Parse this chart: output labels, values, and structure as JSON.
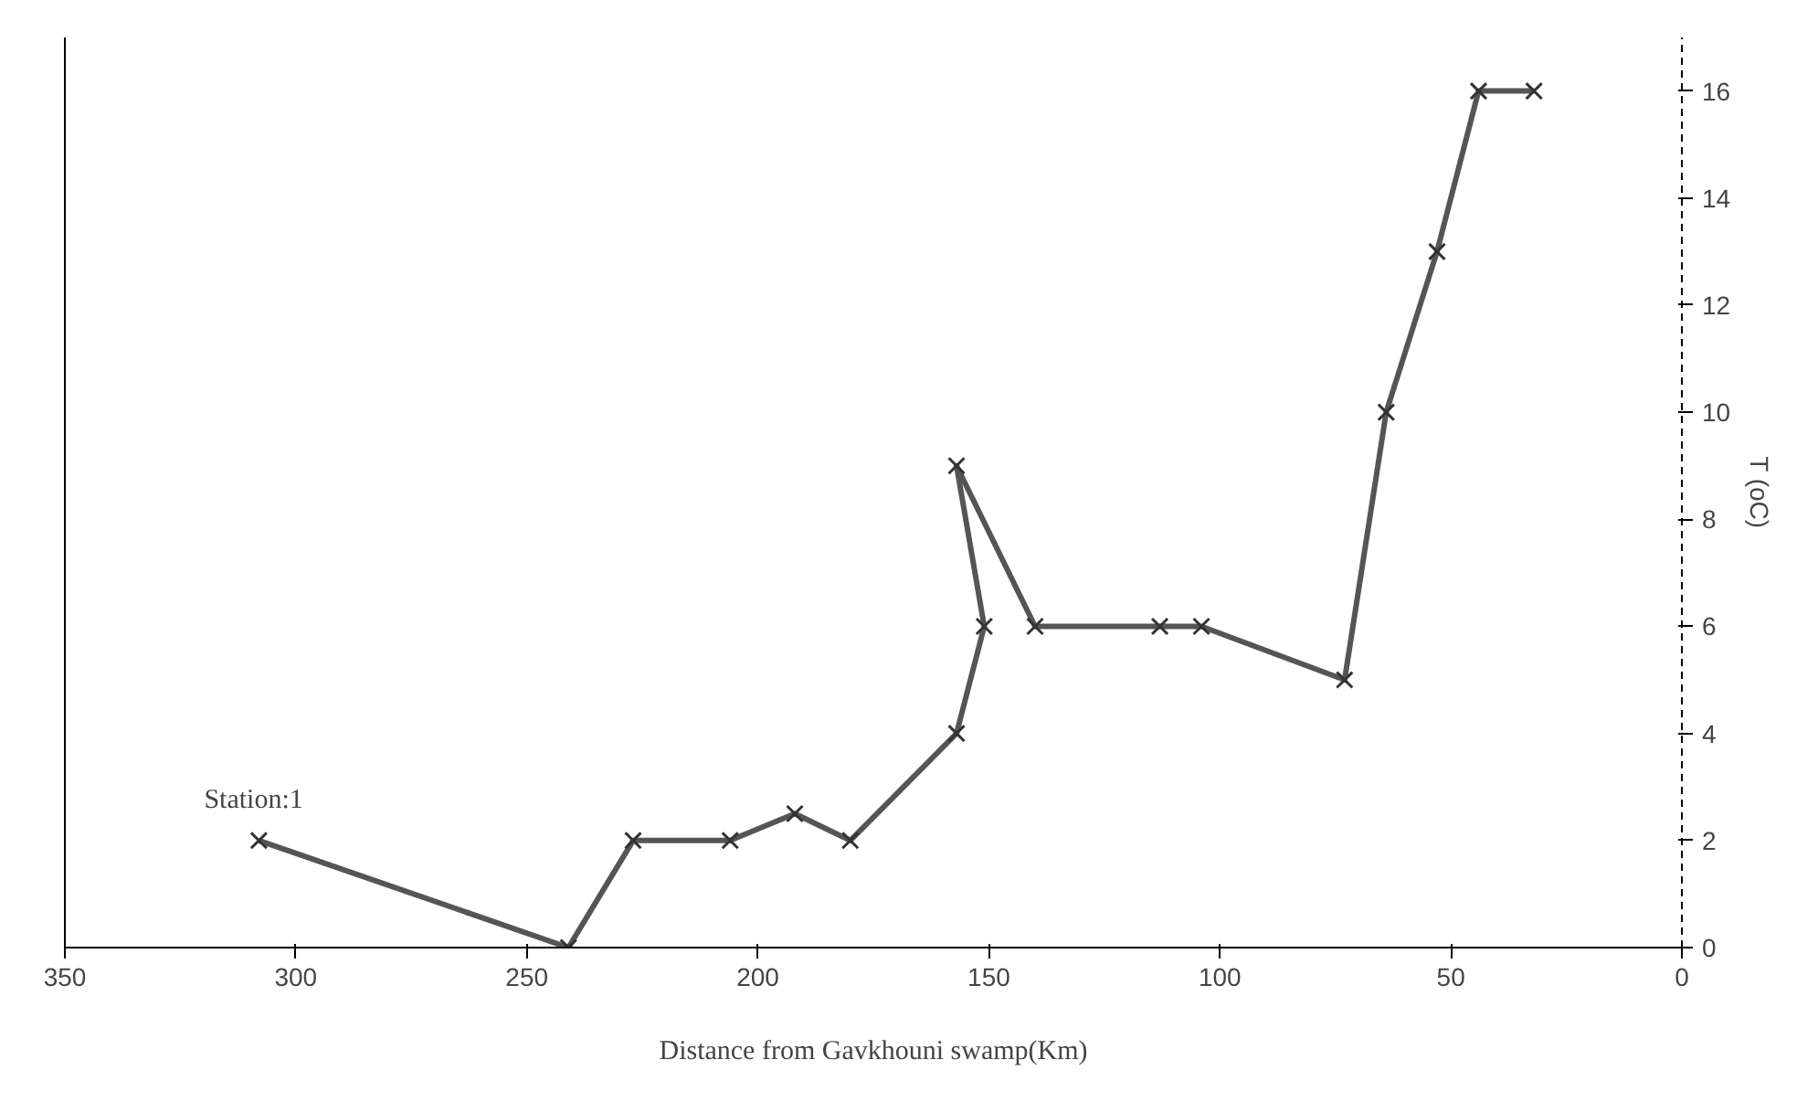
{
  "chart_data": {
    "type": "line",
    "xlabel": "Distance from Gavkhouni swamp(Km)",
    "ylabel": "T (oC)",
    "x": [
      308,
      241,
      227,
      206,
      192,
      180,
      157,
      151,
      157,
      140,
      113,
      104,
      73,
      64,
      53,
      44,
      32
    ],
    "series": [
      {
        "color": "#555555",
        "values": [
          2,
          0,
          2,
          2,
          2.5,
          2,
          4,
          6,
          9,
          6,
          6,
          6,
          5,
          10,
          13,
          16,
          16
        ]
      }
    ],
    "xlim": [
      350,
      0
    ],
    "xticks": [
      350,
      300,
      250,
      200,
      150,
      100,
      50,
      0
    ],
    "ylim": [
      0,
      17
    ],
    "yticks": [
      0,
      2,
      4,
      6,
      8,
      10,
      12,
      14,
      16
    ],
    "annotations": [
      {
        "text": "Station:1",
        "x": 308,
        "y": 2
      }
    ],
    "grid": false,
    "marker": "cross",
    "line_style": "solid"
  }
}
